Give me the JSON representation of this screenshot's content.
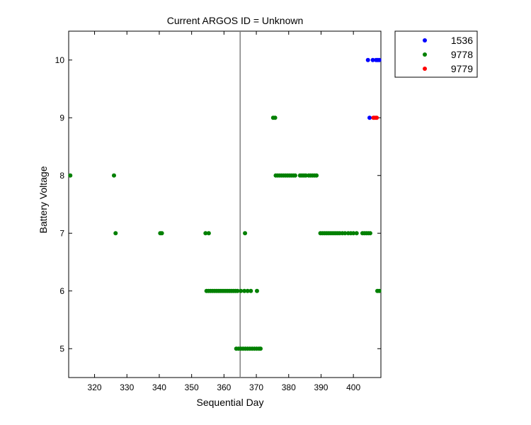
{
  "chart_data": {
    "type": "scatter",
    "title": "Current ARGOS ID = Unknown",
    "xlabel": "Sequential Day",
    "ylabel": "Battery Voltage",
    "xlim": [
      312,
      408.5
    ],
    "ylim": [
      4.5,
      10.5
    ],
    "xticks": [
      320,
      330,
      340,
      350,
      360,
      370,
      380,
      390,
      400
    ],
    "yticks": [
      5,
      6,
      7,
      8,
      9,
      10
    ],
    "grid": false,
    "legend_position": "outside-top-right",
    "reference_line": {
      "x": 365,
      "color": "#808080"
    },
    "series": [
      {
        "name": "1536",
        "color": "#0000ff",
        "points": [
          [
            404.5,
            10
          ],
          [
            406,
            10
          ],
          [
            407,
            10
          ],
          [
            407.5,
            10
          ],
          [
            408,
            10
          ],
          [
            405,
            9
          ]
        ]
      },
      {
        "name": "9778",
        "color": "#008000",
        "points": [
          [
            312.5,
            8
          ],
          [
            326,
            8
          ],
          [
            326.5,
            7
          ],
          [
            340.3,
            7
          ],
          [
            340.8,
            7
          ],
          [
            354.3,
            7
          ],
          [
            355.3,
            7
          ],
          [
            366.5,
            7
          ],
          [
            354.6,
            6
          ],
          [
            355.2,
            6
          ],
          [
            355.8,
            6
          ],
          [
            356.4,
            6
          ],
          [
            357,
            6
          ],
          [
            357.6,
            6
          ],
          [
            358.2,
            6
          ],
          [
            358.8,
            6
          ],
          [
            359.4,
            6
          ],
          [
            360,
            6
          ],
          [
            360.6,
            6
          ],
          [
            361.2,
            6
          ],
          [
            361.8,
            6
          ],
          [
            362.4,
            6
          ],
          [
            363,
            6
          ],
          [
            363.6,
            6
          ],
          [
            364.2,
            6
          ],
          [
            365.2,
            6
          ],
          [
            366.3,
            6
          ],
          [
            367.3,
            6
          ],
          [
            368.3,
            6
          ],
          [
            370.2,
            6
          ],
          [
            363.8,
            5
          ],
          [
            364.5,
            5
          ],
          [
            365.2,
            5
          ],
          [
            365.9,
            5
          ],
          [
            366.6,
            5
          ],
          [
            367.3,
            5
          ],
          [
            368,
            5
          ],
          [
            368.7,
            5
          ],
          [
            369.4,
            5
          ],
          [
            370.1,
            5
          ],
          [
            370.8,
            5
          ],
          [
            371.3,
            5
          ],
          [
            375.2,
            9
          ],
          [
            375.8,
            9
          ],
          [
            376,
            8
          ],
          [
            376.6,
            8
          ],
          [
            377.2,
            8
          ],
          [
            377.8,
            8
          ],
          [
            378.4,
            8
          ],
          [
            379,
            8
          ],
          [
            379.6,
            8
          ],
          [
            380.2,
            8
          ],
          [
            380.8,
            8
          ],
          [
            381.4,
            8
          ],
          [
            382,
            8
          ],
          [
            383.5,
            8
          ],
          [
            384.1,
            8
          ],
          [
            384.7,
            8
          ],
          [
            385.3,
            8
          ],
          [
            386.2,
            8
          ],
          [
            386.8,
            8
          ],
          [
            387.4,
            8
          ],
          [
            388,
            8
          ],
          [
            388.6,
            8
          ],
          [
            389.8,
            7
          ],
          [
            390.4,
            7
          ],
          [
            391,
            7
          ],
          [
            391.6,
            7
          ],
          [
            392.2,
            7
          ],
          [
            392.8,
            7
          ],
          [
            393.4,
            7
          ],
          [
            394,
            7
          ],
          [
            394.6,
            7
          ],
          [
            395.2,
            7
          ],
          [
            395.8,
            7
          ],
          [
            396.6,
            7
          ],
          [
            397.4,
            7
          ],
          [
            398.4,
            7
          ],
          [
            399.2,
            7
          ],
          [
            400,
            7
          ],
          [
            401,
            7
          ],
          [
            402.8,
            7
          ],
          [
            403.4,
            7
          ],
          [
            404,
            7
          ],
          [
            404.6,
            7
          ],
          [
            405.2,
            7
          ],
          [
            407.4,
            6
          ],
          [
            408,
            6
          ]
        ]
      },
      {
        "name": "9779",
        "color": "#ff0000",
        "points": [
          [
            406.2,
            9
          ],
          [
            406.7,
            9
          ],
          [
            407.2,
            9
          ]
        ]
      }
    ]
  }
}
